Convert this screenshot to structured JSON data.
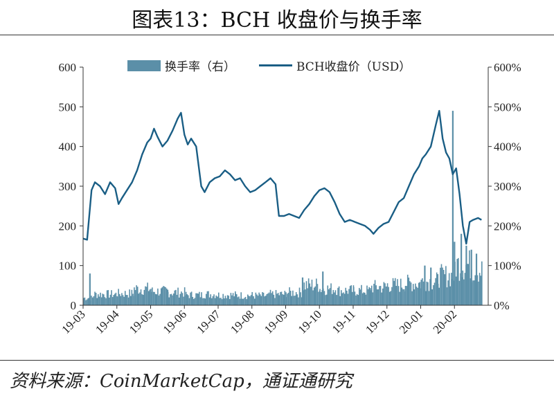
{
  "title": "图表13：BCH 收盘价与换手率",
  "source": "资料来源：CoinMarketCap，通证通研究",
  "colors": {
    "turnover": "#5b8fa8",
    "price": "#1a5e85",
    "axis": "#333333"
  },
  "chart_data": {
    "type": "line+bar",
    "legend": {
      "position": "top"
    },
    "x_ticks": [
      "19-03",
      "19-04",
      "19-05",
      "19-06",
      "19-07",
      "19-08",
      "19-09",
      "19-10",
      "19-11",
      "19-12",
      "20-01",
      "20-02"
    ],
    "y_left": {
      "ticks": [
        "0",
        "100",
        "200",
        "300",
        "400",
        "500",
        "600"
      ],
      "ylim": [
        0,
        600
      ]
    },
    "y_right": {
      "ticks": [
        "0%",
        "100%",
        "200%",
        "300%",
        "400%",
        "500%",
        "600%"
      ],
      "ylim": [
        0,
        600
      ]
    },
    "series": [
      {
        "name": "BCH收盘价（USD）",
        "kind": "line",
        "axis": "left",
        "points": [
          [
            0,
            168
          ],
          [
            0.12,
            165
          ],
          [
            0.25,
            290
          ],
          [
            0.35,
            310
          ],
          [
            0.5,
            300
          ],
          [
            0.65,
            280
          ],
          [
            0.8,
            310
          ],
          [
            0.95,
            295
          ],
          [
            1.05,
            255
          ],
          [
            1.15,
            270
          ],
          [
            1.3,
            290
          ],
          [
            1.45,
            310
          ],
          [
            1.6,
            340
          ],
          [
            1.75,
            380
          ],
          [
            1.9,
            410
          ],
          [
            2.0,
            420
          ],
          [
            2.1,
            445
          ],
          [
            2.2,
            425
          ],
          [
            2.35,
            400
          ],
          [
            2.5,
            415
          ],
          [
            2.65,
            440
          ],
          [
            2.8,
            470
          ],
          [
            2.9,
            485
          ],
          [
            3.0,
            430
          ],
          [
            3.1,
            405
          ],
          [
            3.2,
            420
          ],
          [
            3.35,
            400
          ],
          [
            3.5,
            300
          ],
          [
            3.6,
            285
          ],
          [
            3.75,
            310
          ],
          [
            3.9,
            320
          ],
          [
            4.05,
            325
          ],
          [
            4.2,
            340
          ],
          [
            4.35,
            330
          ],
          [
            4.5,
            315
          ],
          [
            4.65,
            320
          ],
          [
            4.8,
            300
          ],
          [
            4.95,
            285
          ],
          [
            5.1,
            290
          ],
          [
            5.25,
            300
          ],
          [
            5.4,
            310
          ],
          [
            5.55,
            320
          ],
          [
            5.7,
            305
          ],
          [
            5.8,
            225
          ],
          [
            5.95,
            225
          ],
          [
            6.1,
            230
          ],
          [
            6.25,
            225
          ],
          [
            6.4,
            220
          ],
          [
            6.55,
            240
          ],
          [
            6.7,
            255
          ],
          [
            6.85,
            275
          ],
          [
            7.0,
            290
          ],
          [
            7.15,
            295
          ],
          [
            7.3,
            285
          ],
          [
            7.45,
            260
          ],
          [
            7.6,
            230
          ],
          [
            7.75,
            210
          ],
          [
            7.9,
            215
          ],
          [
            8.05,
            210
          ],
          [
            8.2,
            205
          ],
          [
            8.35,
            200
          ],
          [
            8.5,
            190
          ],
          [
            8.6,
            180
          ],
          [
            8.75,
            195
          ],
          [
            8.9,
            205
          ],
          [
            9.05,
            210
          ],
          [
            9.2,
            235
          ],
          [
            9.35,
            260
          ],
          [
            9.5,
            270
          ],
          [
            9.65,
            300
          ],
          [
            9.8,
            330
          ],
          [
            9.95,
            350
          ],
          [
            10.05,
            370
          ],
          [
            10.15,
            380
          ],
          [
            10.3,
            400
          ],
          [
            10.45,
            455
          ],
          [
            10.55,
            490
          ],
          [
            10.65,
            420
          ],
          [
            10.75,
            385
          ],
          [
            10.85,
            370
          ],
          [
            10.95,
            330
          ],
          [
            11.05,
            345
          ],
          [
            11.15,
            280
          ],
          [
            11.25,
            200
          ],
          [
            11.35,
            155
          ],
          [
            11.45,
            210
          ],
          [
            11.55,
            215
          ],
          [
            11.7,
            220
          ],
          [
            11.8,
            215
          ]
        ]
      },
      {
        "name": "换手率（右）",
        "kind": "bar",
        "axis": "right",
        "segments": [
          [
            0,
            0.3,
            20
          ],
          [
            0.3,
            1.0,
            30
          ],
          [
            1.0,
            1.5,
            32
          ],
          [
            1.5,
            2.0,
            45
          ],
          [
            2.0,
            2.5,
            38
          ],
          [
            2.5,
            3.0,
            35
          ],
          [
            3.0,
            3.5,
            28
          ],
          [
            3.5,
            4.0,
            30
          ],
          [
            4.0,
            4.5,
            28
          ],
          [
            4.5,
            5.0,
            27
          ],
          [
            5.0,
            5.5,
            26
          ],
          [
            5.5,
            6.0,
            30
          ],
          [
            6.0,
            6.5,
            35
          ],
          [
            6.5,
            7.0,
            55
          ],
          [
            7.0,
            7.5,
            45
          ],
          [
            7.5,
            8.0,
            40
          ],
          [
            8.0,
            8.5,
            40
          ],
          [
            8.5,
            9.0,
            50
          ],
          [
            9.0,
            9.5,
            55
          ],
          [
            9.5,
            10.0,
            60
          ],
          [
            10.0,
            10.5,
            65
          ],
          [
            10.5,
            11.0,
            80
          ],
          [
            11.0,
            11.5,
            110
          ],
          [
            11.5,
            11.8,
            95
          ]
        ],
        "spikes": [
          [
            0.2,
            80
          ],
          [
            6.5,
            70
          ],
          [
            7.1,
            85
          ],
          [
            10.12,
            100
          ],
          [
            10.3,
            95
          ],
          [
            10.95,
            490
          ],
          [
            11.0,
            160
          ],
          [
            11.2,
            180
          ],
          [
            11.35,
            150
          ],
          [
            11.5,
            140
          ],
          [
            11.65,
            130
          ]
        ]
      }
    ]
  }
}
